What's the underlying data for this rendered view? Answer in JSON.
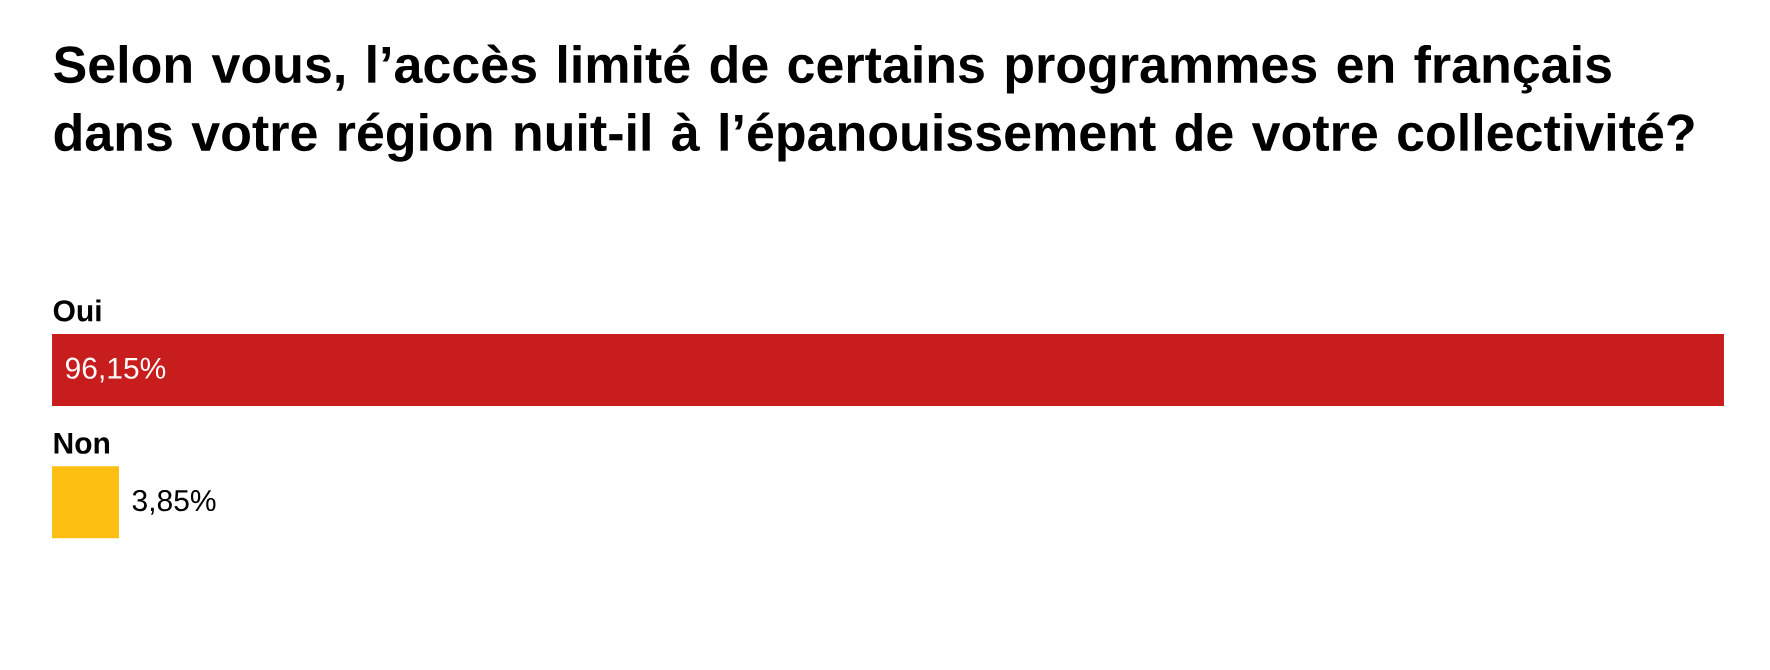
{
  "chart_data": {
    "type": "bar",
    "orientation": "horizontal",
    "title": "Selon vous, l’accès limité de certains programmes en français dans votre région nuit-il à l’épanouissement de votre collectivité?",
    "categories": [
      "Oui",
      "Non"
    ],
    "values": [
      96.15,
      3.85
    ],
    "colors": [
      "#c71e1d",
      "#fdbf11"
    ],
    "value_labels": [
      "96,15%",
      "3,85%"
    ],
    "xlim": [
      0,
      96.15
    ]
  }
}
